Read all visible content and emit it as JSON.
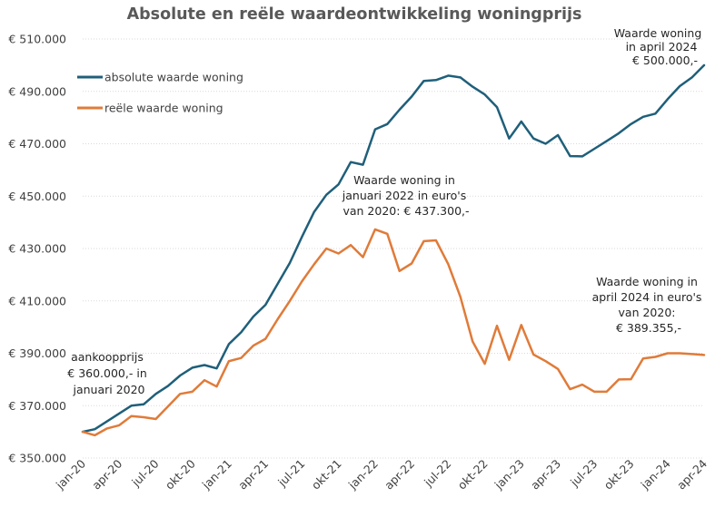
{
  "chart_data": {
    "type": "line",
    "title": "Absolute en reële waardeontwikkeling woningprijs",
    "xlabel": "",
    "ylabel": "",
    "ylim": [
      350000,
      510000
    ],
    "yticks": [
      350000,
      370000,
      390000,
      410000,
      430000,
      450000,
      470000,
      490000,
      510000
    ],
    "ytick_labels": [
      "€ 350.000",
      "€ 370.000",
      "€ 390.000",
      "€ 410.000",
      "€ 430.000",
      "€ 450.000",
      "€ 470.000",
      "€ 490.000",
      "€ 510.000"
    ],
    "x_count": 52,
    "x_tick_labels": [
      {
        "index": 0,
        "label": "jan-20"
      },
      {
        "index": 3,
        "label": "apr-20"
      },
      {
        "index": 6,
        "label": "jul-20"
      },
      {
        "index": 9,
        "label": "okt-20"
      },
      {
        "index": 12,
        "label": "jan-21"
      },
      {
        "index": 15,
        "label": "apr-21"
      },
      {
        "index": 18,
        "label": "jul-21"
      },
      {
        "index": 21,
        "label": "okt-21"
      },
      {
        "index": 24,
        "label": "jan-22"
      },
      {
        "index": 27,
        "label": "apr-22"
      },
      {
        "index": 30,
        "label": "jul-22"
      },
      {
        "index": 33,
        "label": "okt-22"
      },
      {
        "index": 36,
        "label": "jan-23"
      },
      {
        "index": 39,
        "label": "apr-23"
      },
      {
        "index": 42,
        "label": "jul-23"
      },
      {
        "index": 45,
        "label": "okt-23"
      },
      {
        "index": 48,
        "label": "jan-24"
      },
      {
        "index": 51,
        "label": "apr-24"
      }
    ],
    "grid": true,
    "legend_position": "top-left",
    "series": [
      {
        "name": "absolute waarde woning",
        "color": "#1f5f7a",
        "values": [
          360000,
          361000,
          364000,
          367000,
          370000,
          370500,
          374500,
          377500,
          381500,
          384500,
          385500,
          384200,
          393500,
          398000,
          404000,
          408500,
          416500,
          424500,
          434500,
          444000,
          450500,
          454500,
          463000,
          462000,
          475500,
          477500,
          483000,
          488000,
          494000,
          494300,
          496000,
          495300,
          491800,
          488800,
          484000,
          472000,
          478500,
          472000,
          470000,
          473300,
          465300,
          465200,
          468100,
          471000,
          474000,
          477500,
          480300,
          481500,
          487000,
          492000,
          495300,
          500000
        ]
      },
      {
        "name": "reële waarde woning",
        "color": "#e07b39",
        "values": [
          360000,
          358700,
          361300,
          362500,
          366000,
          365600,
          364900,
          369700,
          374500,
          375300,
          379700,
          377300,
          387000,
          388200,
          392900,
          395500,
          403000,
          410000,
          417500,
          424000,
          430000,
          428100,
          431300,
          426700,
          437300,
          435600,
          421400,
          424300,
          432800,
          433100,
          424000,
          411500,
          394500,
          386000,
          400500,
          387500,
          400800,
          389500,
          387000,
          384000,
          376300,
          378000,
          375300,
          375300,
          380000,
          380100,
          388000,
          388600,
          390000,
          390000,
          389700,
          389355
        ]
      }
    ],
    "annotations": [
      {
        "id": "start",
        "lines": [
          "aankoopprijs",
          "€ 360.000,- in",
          "januari 2020"
        ]
      },
      {
        "id": "abs_end",
        "lines": [
          "Waarde woning",
          "in april 2024",
          "€ 500.000,-"
        ]
      },
      {
        "id": "real_peak",
        "lines": [
          "Waarde woning in",
          "januari 2022 in euro's",
          "van 2020: € 437.300,-"
        ]
      },
      {
        "id": "real_end",
        "lines": [
          "Waarde woning in",
          "april 2024 in euro's",
          "van 2020:",
          "€ 389.355,-"
        ]
      }
    ]
  }
}
